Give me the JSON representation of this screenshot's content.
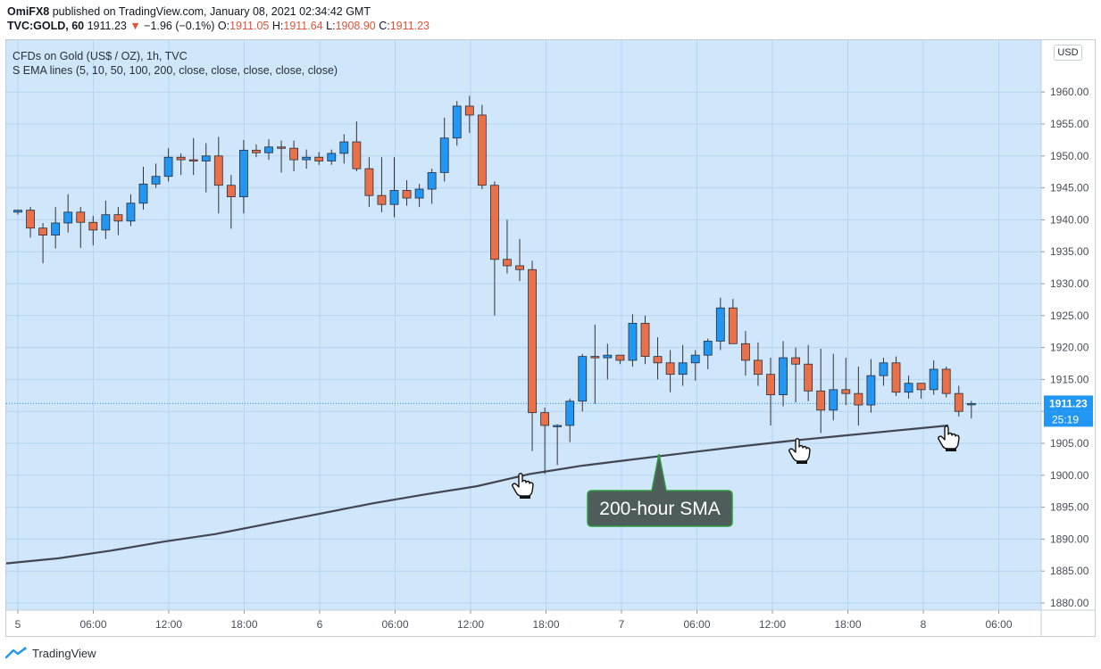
{
  "header": {
    "publisher": "OmiFX8",
    "published_text": "published on TradingView.com, January 08, 2021 02:34:42 GMT",
    "symbol": "TVC:GOLD, 60",
    "last_price": "1911.23",
    "change_arrow": "▼",
    "change": "−1.96 (−0.1%)",
    "open_label": "O:",
    "open": "1911.05",
    "high_label": "H:",
    "high": "1911.64",
    "low_label": "L:",
    "low": "1908.90",
    "close_label": "C:",
    "close": "1911.23"
  },
  "legend": {
    "title": "CFDs on Gold (US$ / OZ), 1h, TVC",
    "indicator": "S EMA lines (5, 10, 50, 100, 200, close, close, close, close, close)"
  },
  "currency_badge": "USD",
  "footer": {
    "brand": "TradingView",
    "logo_icon": "tradingview-logo-icon"
  },
  "colors": {
    "up": "#2196f3",
    "down": "#e8714a",
    "wick": "#333333",
    "sma": "#434651",
    "plot_background": "#cfe6fb",
    "grid": "#b5d4f0",
    "price_label": "#2196f3",
    "callout_fill": "#4e5d5b",
    "callout_border": "#2d9b3a"
  },
  "chart_data": {
    "type": "candlestick",
    "title": "CFDs on Gold (US$ / OZ), 1h, TVC",
    "ylabel": "USD",
    "ylim": [
      1878,
      1965
    ],
    "y_ticks": [
      "1880.00",
      "1885.00",
      "1890.00",
      "1895.00",
      "1900.00",
      "1905.00",
      "1910.00",
      "1915.00",
      "1920.00",
      "1925.00",
      "1930.00",
      "1935.00",
      "1940.00",
      "1945.00",
      "1950.00",
      "1955.00",
      "1960.00"
    ],
    "x_ticks": [
      "5",
      "06:00",
      "12:00",
      "18:00",
      "6",
      "06:00",
      "12:00",
      "18:00",
      "7",
      "06:00",
      "12:00",
      "18:00",
      "8",
      "06:00"
    ],
    "candles": [
      {
        "o": 1941.2,
        "h": 1941.6,
        "l": 1940.8,
        "c": 1941.5
      },
      {
        "o": 1941.5,
        "h": 1942.0,
        "l": 1937.2,
        "c": 1938.7
      },
      {
        "o": 1938.7,
        "h": 1939.5,
        "l": 1933.2,
        "c": 1937.6
      },
      {
        "o": 1937.6,
        "h": 1942.0,
        "l": 1935.5,
        "c": 1939.5
      },
      {
        "o": 1939.5,
        "h": 1944.0,
        "l": 1938.0,
        "c": 1941.2
      },
      {
        "o": 1941.2,
        "h": 1942.0,
        "l": 1935.6,
        "c": 1939.6
      },
      {
        "o": 1939.6,
        "h": 1940.6,
        "l": 1936.0,
        "c": 1938.4
      },
      {
        "o": 1938.4,
        "h": 1943.0,
        "l": 1937.0,
        "c": 1940.8
      },
      {
        "o": 1940.8,
        "h": 1942.0,
        "l": 1937.6,
        "c": 1939.8
      },
      {
        "o": 1939.8,
        "h": 1944.0,
        "l": 1939.0,
        "c": 1942.6
      },
      {
        "o": 1942.6,
        "h": 1948.3,
        "l": 1941.6,
        "c": 1945.6
      },
      {
        "o": 1945.6,
        "h": 1948.8,
        "l": 1945.0,
        "c": 1946.8
      },
      {
        "o": 1946.8,
        "h": 1951.2,
        "l": 1946.0,
        "c": 1949.8
      },
      {
        "o": 1949.8,
        "h": 1950.4,
        "l": 1947.0,
        "c": 1949.4
      },
      {
        "o": 1949.4,
        "h": 1952.8,
        "l": 1947.0,
        "c": 1949.2
      },
      {
        "o": 1949.2,
        "h": 1952.0,
        "l": 1944.3,
        "c": 1950.0
      },
      {
        "o": 1950.0,
        "h": 1953.0,
        "l": 1941.0,
        "c": 1945.4
      },
      {
        "o": 1945.4,
        "h": 1947.0,
        "l": 1938.6,
        "c": 1943.6
      },
      {
        "o": 1943.6,
        "h": 1952.5,
        "l": 1941.0,
        "c": 1950.9
      },
      {
        "o": 1950.9,
        "h": 1951.8,
        "l": 1949.8,
        "c": 1950.5
      },
      {
        "o": 1950.5,
        "h": 1952.6,
        "l": 1949.4,
        "c": 1951.4
      },
      {
        "o": 1951.4,
        "h": 1952.4,
        "l": 1947.4,
        "c": 1951.2
      },
      {
        "o": 1951.2,
        "h": 1952.4,
        "l": 1947.6,
        "c": 1949.4
      },
      {
        "o": 1949.4,
        "h": 1951.0,
        "l": 1948.0,
        "c": 1949.8
      },
      {
        "o": 1949.8,
        "h": 1950.6,
        "l": 1948.6,
        "c": 1949.2
      },
      {
        "o": 1949.2,
        "h": 1951.0,
        "l": 1948.6,
        "c": 1950.4
      },
      {
        "o": 1950.4,
        "h": 1953.4,
        "l": 1948.8,
        "c": 1952.2
      },
      {
        "o": 1952.2,
        "h": 1955.4,
        "l": 1947.6,
        "c": 1948.0
      },
      {
        "o": 1948.0,
        "h": 1949.8,
        "l": 1942.0,
        "c": 1943.8
      },
      {
        "o": 1943.8,
        "h": 1949.8,
        "l": 1941.2,
        "c": 1942.4
      },
      {
        "o": 1942.4,
        "h": 1949.8,
        "l": 1940.4,
        "c": 1944.6
      },
      {
        "o": 1944.6,
        "h": 1946.2,
        "l": 1942.2,
        "c": 1943.4
      },
      {
        "o": 1943.4,
        "h": 1945.6,
        "l": 1942.0,
        "c": 1944.8
      },
      {
        "o": 1944.8,
        "h": 1948.0,
        "l": 1942.5,
        "c": 1947.4
      },
      {
        "o": 1947.4,
        "h": 1956.0,
        "l": 1946.0,
        "c": 1952.8
      },
      {
        "o": 1952.8,
        "h": 1958.6,
        "l": 1951.6,
        "c": 1957.8
      },
      {
        "o": 1957.8,
        "h": 1959.4,
        "l": 1953.6,
        "c": 1956.4
      },
      {
        "o": 1956.4,
        "h": 1958.0,
        "l": 1944.8,
        "c": 1945.4
      },
      {
        "o": 1945.4,
        "h": 1946.0,
        "l": 1925.0,
        "c": 1933.8
      },
      {
        "o": 1933.8,
        "h": 1940.0,
        "l": 1931.6,
        "c": 1932.8
      },
      {
        "o": 1932.8,
        "h": 1937.0,
        "l": 1930.4,
        "c": 1932.2
      },
      {
        "o": 1932.2,
        "h": 1933.6,
        "l": 1903.8,
        "c": 1909.8
      },
      {
        "o": 1909.8,
        "h": 1910.6,
        "l": 1900.2,
        "c": 1907.8
      },
      {
        "o": 1907.8,
        "h": 1908.0,
        "l": 1901.6,
        "c": 1907.8
      },
      {
        "o": 1907.8,
        "h": 1912.0,
        "l": 1905.2,
        "c": 1911.6
      },
      {
        "o": 1911.6,
        "h": 1919.0,
        "l": 1910.0,
        "c": 1918.6
      },
      {
        "o": 1918.6,
        "h": 1923.6,
        "l": 1911.2,
        "c": 1918.4
      },
      {
        "o": 1918.4,
        "h": 1920.6,
        "l": 1915.0,
        "c": 1918.8
      },
      {
        "o": 1918.8,
        "h": 1918.6,
        "l": 1917.4,
        "c": 1918.0
      },
      {
        "o": 1918.0,
        "h": 1925.2,
        "l": 1917.0,
        "c": 1923.8
      },
      {
        "o": 1923.8,
        "h": 1925.0,
        "l": 1917.4,
        "c": 1918.6
      },
      {
        "o": 1918.6,
        "h": 1921.6,
        "l": 1915.0,
        "c": 1917.6
      },
      {
        "o": 1917.6,
        "h": 1919.6,
        "l": 1913.0,
        "c": 1915.8
      },
      {
        "o": 1915.8,
        "h": 1920.4,
        "l": 1914.0,
        "c": 1917.6
      },
      {
        "o": 1917.6,
        "h": 1919.6,
        "l": 1914.8,
        "c": 1918.8
      },
      {
        "o": 1918.8,
        "h": 1921.4,
        "l": 1916.6,
        "c": 1921.0
      },
      {
        "o": 1921.0,
        "h": 1927.8,
        "l": 1919.6,
        "c": 1926.2
      },
      {
        "o": 1926.2,
        "h": 1927.6,
        "l": 1920.6,
        "c": 1920.6
      },
      {
        "o": 1920.6,
        "h": 1922.6,
        "l": 1915.6,
        "c": 1918.0
      },
      {
        "o": 1918.0,
        "h": 1920.8,
        "l": 1914.0,
        "c": 1915.8
      },
      {
        "o": 1915.8,
        "h": 1918.4,
        "l": 1907.8,
        "c": 1912.6
      },
      {
        "o": 1912.6,
        "h": 1921.0,
        "l": 1910.8,
        "c": 1918.4
      },
      {
        "o": 1918.4,
        "h": 1920.0,
        "l": 1911.4,
        "c": 1917.4
      },
      {
        "o": 1917.4,
        "h": 1920.4,
        "l": 1911.6,
        "c": 1913.2
      },
      {
        "o": 1913.2,
        "h": 1919.8,
        "l": 1906.6,
        "c": 1910.2
      },
      {
        "o": 1910.2,
        "h": 1919.0,
        "l": 1908.6,
        "c": 1913.4
      },
      {
        "o": 1913.4,
        "h": 1918.4,
        "l": 1911.0,
        "c": 1912.8
      },
      {
        "o": 1912.8,
        "h": 1917.0,
        "l": 1907.8,
        "c": 1911.0
      },
      {
        "o": 1911.0,
        "h": 1918.2,
        "l": 1909.8,
        "c": 1915.6
      },
      {
        "o": 1915.6,
        "h": 1918.4,
        "l": 1914.0,
        "c": 1917.6
      },
      {
        "o": 1917.6,
        "h": 1918.6,
        "l": 1912.4,
        "c": 1913.0
      },
      {
        "o": 1913.0,
        "h": 1915.6,
        "l": 1912.0,
        "c": 1914.4
      },
      {
        "o": 1914.4,
        "h": 1914.0,
        "l": 1912.0,
        "c": 1913.4
      },
      {
        "o": 1913.4,
        "h": 1918.0,
        "l": 1912.6,
        "c": 1916.6
      },
      {
        "o": 1916.6,
        "h": 1917.0,
        "l": 1912.2,
        "c": 1912.8
      },
      {
        "o": 1912.8,
        "h": 1914.0,
        "l": 1909.2,
        "c": 1910.0
      },
      {
        "o": 1911.05,
        "h": 1911.64,
        "l": 1908.9,
        "c": 1911.23
      }
    ],
    "sma200": {
      "name": "200-hour SMA",
      "values": [
        1886.2,
        1887.0,
        1888.2,
        1889.6,
        1890.8,
        1892.4,
        1894.0,
        1895.6,
        1897.0,
        1898.3,
        1900.2,
        1901.5,
        1902.5,
        1903.5,
        1904.5,
        1905.4,
        1906.2,
        1907.0,
        1907.8
      ]
    },
    "last_price_label": "1911.23",
    "countdown_label": "25:19",
    "annotations": [
      {
        "text": "200-hour SMA",
        "type": "callout"
      },
      {
        "type": "hand-pointer",
        "near_candle": 42
      },
      {
        "type": "hand-pointer",
        "near_candle": 64
      },
      {
        "type": "hand-pointer",
        "near_candle": 76
      }
    ]
  }
}
